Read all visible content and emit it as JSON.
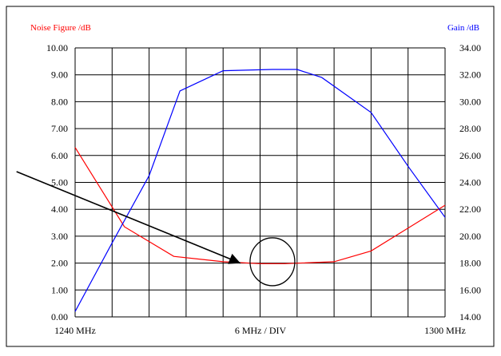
{
  "chart_data": {
    "type": "line",
    "left_axis_title": "Noise Figure /dB",
    "right_axis_title": "Gain /dB",
    "x_start_label": "1240 MHz",
    "x_div_label": "6 MHz / DIV",
    "x_end_label": "1300 MHz",
    "xlim": [
      1240,
      1300
    ],
    "ylim_left": [
      0,
      10
    ],
    "ylim_right": [
      14,
      34
    ],
    "left_ticks": [
      "10.00",
      "9.00",
      "8.00",
      "7.00",
      "6.00",
      "5.00",
      "4.00",
      "3.00",
      "2.00",
      "1.00",
      "0.00"
    ],
    "right_ticks": [
      "34.00",
      "32.00",
      "30.00",
      "28.00",
      "26.00",
      "24.00",
      "22.00",
      "20.00",
      "18.00",
      "16.00",
      "14.00"
    ],
    "grid": true,
    "series": [
      {
        "axis": "left",
        "color": "#ff0000",
        "x": [
          1240,
          1248,
          1256,
          1264,
          1270,
          1274,
          1282,
          1288,
          1300
        ],
        "y": [
          6.3,
          3.35,
          2.25,
          2.05,
          1.98,
          1.98,
          2.05,
          2.45,
          4.15
        ]
      },
      {
        "axis": "right",
        "color": "#0000ff",
        "x": [
          1240,
          1246,
          1252,
          1257,
          1264,
          1272,
          1276,
          1280,
          1288,
          1294,
          1300
        ],
        "y": [
          14.4,
          19.5,
          24.5,
          30.8,
          32.3,
          32.4,
          32.4,
          31.8,
          29.2,
          25.2,
          21.4
        ]
      }
    ],
    "annotation": {
      "type": "arrow-to-circle",
      "from": [
        1230.5,
        5.4
      ],
      "to": [
        1266.8,
        2.0
      ],
      "circle_center": [
        1272,
        2.05
      ]
    },
    "colors": {
      "left_axis_title": "#ff0000",
      "right_axis_title": "#0000ff",
      "grid": "#000000",
      "annotation": "#000000"
    }
  }
}
